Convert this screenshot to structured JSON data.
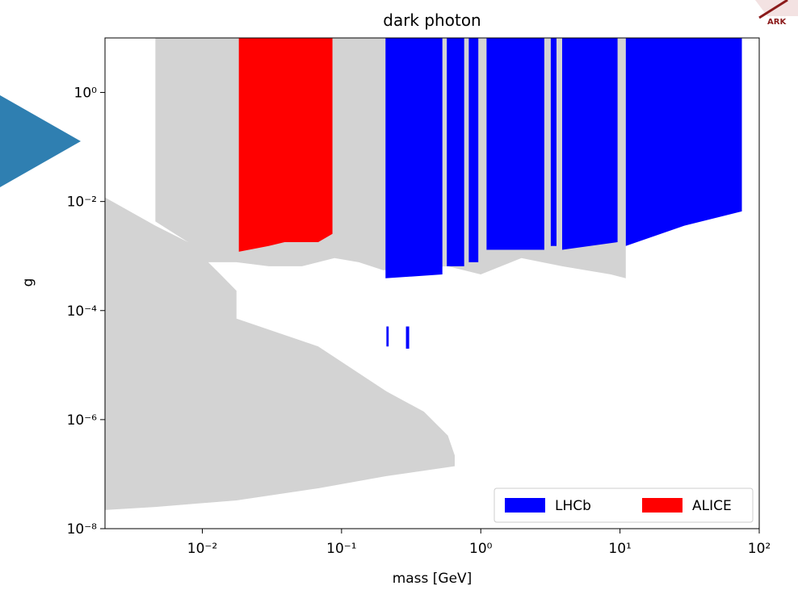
{
  "chart_data": {
    "type": "fill",
    "title": "dark photon",
    "xlabel": "mass [GeV]",
    "ylabel": "g",
    "xscale": "log",
    "yscale": "log",
    "xlim": [
      0.002,
      100
    ],
    "ylim": [
      1e-08,
      10
    ],
    "xticks": [
      {
        "value": 0.01,
        "label": "10⁻²"
      },
      {
        "value": 0.1,
        "label": "10⁻¹"
      },
      {
        "value": 1,
        "label": "10⁰"
      },
      {
        "value": 10,
        "label": "10¹"
      },
      {
        "value": 100,
        "label": "10²"
      }
    ],
    "yticks": [
      {
        "value": 1e-08,
        "label": "10⁻⁸"
      },
      {
        "value": 1e-06,
        "label": "10⁻⁶"
      },
      {
        "value": 0.0001,
        "label": "10⁻⁴"
      },
      {
        "value": 0.01,
        "label": "10⁻²"
      },
      {
        "value": 1,
        "label": "10⁰"
      }
    ],
    "legend": "lower right",
    "series": [
      {
        "color": "#d3d3d3",
        "x": [
          0.0046,
          11,
          11,
          8.6,
          3.84,
          1.96,
          1.0,
          0.58,
          0.199,
          0.133,
          0.089,
          0.052,
          0.03,
          0.0176,
          0.0103,
          0.0084,
          0.0079,
          0.0046,
          null,
          0.002,
          0.0046,
          0.0079,
          0.0135,
          0.0176,
          0.0176,
          0.068,
          0.21,
          0.39,
          0.58,
          0.65,
          0.65,
          0.21,
          0.068,
          0.0176,
          0.0046,
          0.002
        ],
        "y": [
          10,
          10,
          0.00039,
          0.00046,
          0.00065,
          0.00092,
          0.00046,
          0.00065,
          0.00055,
          0.00077,
          0.00092,
          0.00065,
          0.00065,
          0.00077,
          0.00077,
          0.00092,
          0.0018,
          0.0043,
          null,
          0.0119,
          0.0036,
          0.0018,
          0.00046,
          0.00023,
          7.1e-05,
          2.2e-05,
          3.3e-06,
          1.4e-06,
          5.1e-07,
          2.2e-07,
          1.4e-07,
          9.2e-08,
          5.5e-08,
          3.3e-08,
          2.5e-08,
          2.2e-08
        ]
      },
      {
        "name": "LHCb",
        "color": "#0000ff",
        "x": [
          0.207,
          0.53,
          0.53,
          0.207,
          null,
          0.57,
          0.76,
          0.76,
          0.57,
          null,
          0.82,
          0.96,
          0.96,
          0.82,
          null,
          1.1,
          2.86,
          2.86,
          1.1,
          null,
          3.18,
          3.5,
          3.5,
          3.18,
          null,
          3.84,
          9.6,
          9.6,
          3.84,
          null,
          11.0,
          75,
          75,
          29,
          11.0,
          null,
          0.21,
          0.218,
          0.218,
          0.21,
          null,
          0.29,
          0.306,
          0.306,
          0.29
        ],
        "y": [
          10,
          10,
          0.00046,
          0.00039,
          null,
          10,
          10,
          0.00065,
          0.00065,
          null,
          10,
          10,
          0.00077,
          0.00077,
          null,
          10,
          10,
          0.0013,
          0.0013,
          null,
          10,
          10,
          0.00153,
          0.00153,
          null,
          10,
          10,
          0.0018,
          0.0013,
          null,
          10,
          10,
          0.0066,
          0.0036,
          0.00153,
          null,
          5.1e-05,
          5.1e-05,
          2.2e-05,
          2.2e-05,
          null,
          5.1e-05,
          5.1e-05,
          2e-05,
          2e-05
        ]
      },
      {
        "name": "ALICE",
        "color": "#ff0000",
        "x": [
          0.0183,
          0.086,
          0.086,
          0.068,
          0.039,
          0.03,
          0.0183
        ],
        "y": [
          10,
          10,
          0.00255,
          0.0018,
          0.0018,
          0.00153,
          0.0012
        ]
      }
    ]
  },
  "decor": {
    "logo_text": "ARK"
  }
}
